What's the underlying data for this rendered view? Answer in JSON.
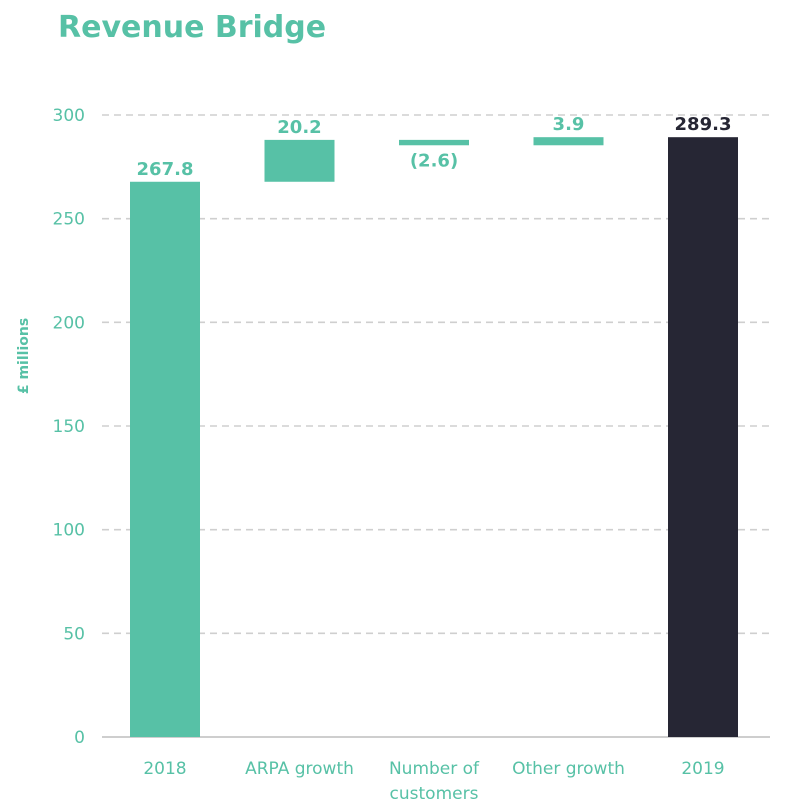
{
  "chart_data": {
    "type": "bar",
    "subtype": "waterfall",
    "title": "Revenue Bridge",
    "xlabel": "",
    "ylabel": "£ millions",
    "ylim": [
      0,
      300
    ],
    "yticks": [
      0,
      50,
      100,
      150,
      200,
      250,
      300
    ],
    "grid": true,
    "categories": [
      {
        "label": "2018",
        "label_lines": [
          "2018"
        ],
        "kind": "total",
        "value": 267.8,
        "start": 0,
        "end": 267.8,
        "display": "267.8"
      },
      {
        "label": "ARPA growth",
        "label_lines": [
          "ARPA growth"
        ],
        "kind": "delta",
        "value": 20.2,
        "start": 267.8,
        "end": 288.0,
        "display": "20.2"
      },
      {
        "label": "Number of customers",
        "label_lines": [
          "Number of",
          "customers"
        ],
        "kind": "delta",
        "value": -2.6,
        "start": 288.0,
        "end": 285.4,
        "display": "(2.6)"
      },
      {
        "label": "Other growth",
        "label_lines": [
          "Other growth"
        ],
        "kind": "delta",
        "value": 3.9,
        "start": 285.4,
        "end": 289.3,
        "display": "3.9"
      },
      {
        "label": "2019",
        "label_lines": [
          "2019"
        ],
        "kind": "total",
        "value": 289.3,
        "start": 0,
        "end": 289.3,
        "display": "289.3"
      }
    ]
  },
  "colors": {
    "accent": "#57c1a6",
    "total_final": "#262634",
    "grid": "#cfcfcf",
    "axis": "#bdbdbd"
  }
}
